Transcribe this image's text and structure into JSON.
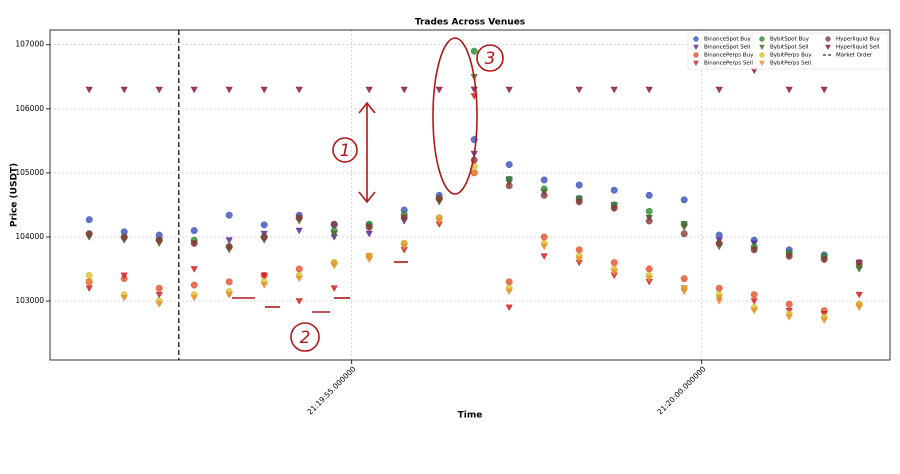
{
  "chart_data": {
    "type": "scatter",
    "title": "Trades Across Venues",
    "x_label": "Time",
    "y_label": "Price (USDT)",
    "xlim": [
      0.69,
      12.69
    ],
    "ylim": [
      102080,
      107230
    ],
    "xticks": [
      {
        "value": 5,
        "label": "21:19:55.000000"
      },
      {
        "value": 10,
        "label": "21:20:00.000000"
      }
    ],
    "yticks": [
      103000,
      104000,
      105000,
      106000,
      107000
    ],
    "grid": true,
    "legend": "upper right",
    "x": [
      1.25,
      1.75,
      2.25,
      2.75,
      3.25,
      3.75,
      4.25,
      4.75,
      5.25,
      5.75,
      6.25,
      6.75,
      7.25,
      7.75,
      8.25,
      8.75,
      9.25,
      9.75,
      10.25,
      10.75,
      11.25,
      11.75,
      12.25
    ],
    "series": [
      {
        "name": "BinanceSpot Buy",
        "color": "#3a4fbf",
        "marker": "circle",
        "values": [
          104270,
          104080,
          104030,
          104100,
          104340,
          104190,
          104340,
          104190,
          104190,
          104420,
          104650,
          105520,
          105130,
          104890,
          104810,
          104730,
          104650,
          104580,
          104030,
          103950,
          103800,
          103720,
          null
        ]
      },
      {
        "name": "BinanceSpot Sell",
        "color": "#5b2a9a",
        "marker": "triangle",
        "values": [
          104000,
          103980,
          103950,
          103900,
          103950,
          104050,
          104100,
          104000,
          104050,
          104250,
          104550,
          105300,
          104900,
          104700,
          104600,
          104500,
          104300,
          104200,
          103950,
          103900,
          103750,
          103650,
          103600
        ]
      },
      {
        "name": "BinancePerps Buy",
        "color": "#e0502a",
        "marker": "circle",
        "values": [
          103300,
          103350,
          103200,
          103250,
          103300,
          103400,
          103500,
          103600,
          103700,
          103900,
          104300,
          105000,
          103300,
          104000,
          103800,
          103600,
          103500,
          103350,
          103200,
          103100,
          102950,
          102850,
          102950
        ]
      },
      {
        "name": "BinancePerps Sell",
        "color": "#d42020",
        "marker": "triangle",
        "values": [
          103200,
          103400,
          103100,
          103500,
          103100,
          103400,
          103000,
          103200,
          103700,
          103800,
          104200,
          106200,
          102900,
          103700,
          103600,
          103400,
          103300,
          103200,
          103050,
          103000,
          102850,
          102800,
          103100
        ]
      },
      {
        "name": "BybitSpot Buy",
        "color": "#2e8b2e",
        "marker": "circle",
        "values": [
          104050,
          104000,
          103950,
          103950,
          103850,
          104000,
          104300,
          104100,
          104200,
          104350,
          104600,
          106900,
          104900,
          104750,
          104600,
          104500,
          104400,
          104200,
          103900,
          103850,
          103750,
          103700,
          103550
        ]
      },
      {
        "name": "BybitSpot Sell",
        "color": "#556b2f",
        "marker": "triangle",
        "values": [
          104000,
          103950,
          103900,
          103900,
          103800,
          103950,
          104250,
          104050,
          104150,
          104300,
          104550,
          106500,
          104850,
          104700,
          104550,
          104450,
          104300,
          104150,
          103850,
          103800,
          103700,
          103650,
          103500
        ]
      },
      {
        "name": "BybitPerps Buy",
        "color": "#d4c030",
        "marker": "circle",
        "values": [
          103400,
          103100,
          103000,
          103100,
          103150,
          103300,
          103400,
          103600,
          103700,
          103900,
          104300,
          105100,
          103200,
          103900,
          103700,
          103500,
          103400,
          103200,
          103100,
          102900,
          102800,
          102750,
          102950
        ]
      },
      {
        "name": "BybitPerps Sell",
        "color": "#e89030",
        "marker": "triangle",
        "values": [
          103300,
          103050,
          102950,
          103050,
          103100,
          103250,
          103350,
          103550,
          103650,
          103850,
          104250,
          105000,
          103150,
          103850,
          103650,
          103450,
          103350,
          103150,
          103000,
          102850,
          102750,
          102700,
          102900
        ]
      },
      {
        "name": "Hyperliquid Buy",
        "color": "#8b3a3a",
        "marker": "circle",
        "values": [
          104050,
          104000,
          103950,
          103900,
          103850,
          104000,
          104300,
          104200,
          104150,
          104300,
          104600,
          105200,
          104800,
          104650,
          104550,
          104450,
          104250,
          104050,
          103900,
          103800,
          103700,
          103650,
          103600
        ]
      },
      {
        "name": "Hyperliquid Sell",
        "color": "#8b1a4a",
        "marker": "triangle",
        "values": [
          106300,
          106300,
          106300,
          106300,
          106300,
          106300,
          106300,
          null,
          106300,
          106300,
          106300,
          106300,
          106300,
          null,
          106300,
          106300,
          106300,
          null,
          106300,
          106600,
          106300,
          106300,
          null
        ]
      }
    ],
    "vlines": [
      {
        "name": "Market Order",
        "x": 2.53,
        "color": "#000000"
      }
    ],
    "annotations": [
      {
        "text": "1"
      },
      {
        "text": "2"
      },
      {
        "text": "3"
      }
    ]
  }
}
